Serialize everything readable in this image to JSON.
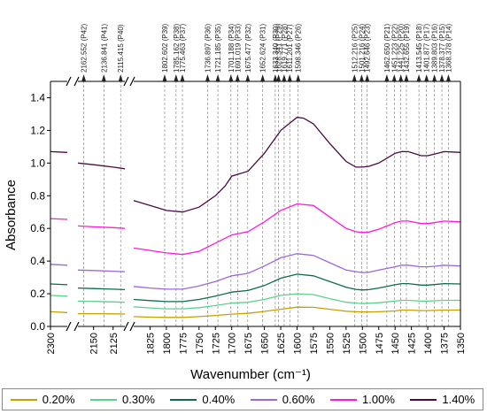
{
  "chart_data": {
    "type": "line",
    "title": "",
    "xlabel": "Wavenumber (cm⁻¹)",
    "ylabel": "Absorbance",
    "ylim": [
      0,
      1.5
    ],
    "y_ticks": [
      "0.0",
      "0.2",
      "0.4",
      "0.6",
      "0.8",
      "1.0",
      "1.2",
      "1.4"
    ],
    "y_tick_values": [
      0,
      0.2,
      0.4,
      0.6,
      0.8,
      1.0,
      1.2,
      1.4
    ],
    "x_direction": "reversed",
    "x_segments": [
      {
        "range": [
          2300,
          2290
        ],
        "ticks": [
          2300
        ]
      },
      {
        "range": [
          2170,
          2110
        ],
        "ticks": [
          2150,
          2125
        ]
      },
      {
        "range": [
          1850,
          1350
        ],
        "ticks": [
          1825,
          1800,
          1775,
          1750,
          1725,
          1700,
          1675,
          1650,
          1625,
          1600,
          1575,
          1550,
          1525,
          1500,
          1475,
          1450,
          1425,
          1400,
          1375,
          1350
        ]
      }
    ],
    "peak_annotations": [
      {
        "x": 2162.552,
        "label": "2162.552 (P42)"
      },
      {
        "x": 2136.841,
        "label": "2136.841 (P41)"
      },
      {
        "x": 2115.415,
        "label": "2115.415 (P40)"
      },
      {
        "x": 1802.602,
        "label": "1802.602 (P39)"
      },
      {
        "x": 1785.162,
        "label": "1785.162 (P38)"
      },
      {
        "x": 1775.463,
        "label": "1775.463 (P37)"
      },
      {
        "x": 1736.897,
        "label": "1736.897 (P36)"
      },
      {
        "x": 1721.185,
        "label": "1721.185 (P35)"
      },
      {
        "x": 1701.188,
        "label": "1701.188 (P34)"
      },
      {
        "x": 1691.019,
        "label": "1691.019 (P33)"
      },
      {
        "x": 1675.477,
        "label": "1675.477 (P32)"
      },
      {
        "x": 1652.624,
        "label": "1652.624 (P31)"
      },
      {
        "x": 1633.34,
        "label": "1633.340 (P30)"
      },
      {
        "x": 1628.341,
        "label": "1628.341 (P29)"
      },
      {
        "x": 1619.771,
        "label": "1619.771 (P28)"
      },
      {
        "x": 1611.201,
        "label": "1611.201 (P27)"
      },
      {
        "x": 1598.346,
        "label": "1598.346 (P26)"
      },
      {
        "x": 1512.216,
        "label": "1512.216 (P25)"
      },
      {
        "x": 1501.216,
        "label": "1501.216 (P24)"
      },
      {
        "x": 1492.646,
        "label": "1492.646 (P23)"
      },
      {
        "x": 1451.223,
        "label": "1451.223 (P22)"
      },
      {
        "x": 1462.65,
        "label": "1462.650 (P21)"
      },
      {
        "x": 1441.225,
        "label": "1441.225 (P20)"
      },
      {
        "x": 1432.655,
        "label": "1432.655 (P19)"
      },
      {
        "x": 1413.545,
        "label": "1413.545 (P18)"
      },
      {
        "x": 1401.877,
        "label": "1401.877 (P17)"
      },
      {
        "x": 1389.803,
        "label": "1389.803 (P16)"
      },
      {
        "x": 1378.377,
        "label": "1378.377 (P15)"
      },
      {
        "x": 1368.378,
        "label": "1368.378 (P14)"
      }
    ],
    "series": [
      {
        "name": "0.20%",
        "color": "#c8a000",
        "points": [
          [
            2300,
            0.09
          ],
          [
            2290,
            0.085
          ],
          [
            2170,
            0.078
          ],
          [
            2150,
            0.078
          ],
          [
            2125,
            0.077
          ],
          [
            2110,
            0.076
          ],
          [
            1850,
            0.06
          ],
          [
            1825,
            0.057
          ],
          [
            1800,
            0.055
          ],
          [
            1775,
            0.055
          ],
          [
            1750,
            0.06
          ],
          [
            1725,
            0.067
          ],
          [
            1700,
            0.075
          ],
          [
            1675,
            0.08
          ],
          [
            1650,
            0.092
          ],
          [
            1625,
            0.105
          ],
          [
            1600,
            0.118
          ],
          [
            1575,
            0.117
          ],
          [
            1550,
            0.105
          ],
          [
            1525,
            0.093
          ],
          [
            1510,
            0.09
          ],
          [
            1500,
            0.088
          ],
          [
            1490,
            0.088
          ],
          [
            1475,
            0.09
          ],
          [
            1450,
            0.095
          ],
          [
            1440,
            0.1
          ],
          [
            1430,
            0.1
          ],
          [
            1410,
            0.097
          ],
          [
            1400,
            0.097
          ],
          [
            1390,
            0.098
          ],
          [
            1375,
            0.1
          ],
          [
            1350,
            0.1
          ]
        ]
      },
      {
        "name": "0.30%",
        "color": "#5ad28c",
        "points": [
          [
            2300,
            0.19
          ],
          [
            2290,
            0.185
          ],
          [
            2170,
            0.155
          ],
          [
            2150,
            0.153
          ],
          [
            2125,
            0.15
          ],
          [
            2110,
            0.148
          ],
          [
            1850,
            0.12
          ],
          [
            1825,
            0.113
          ],
          [
            1800,
            0.108
          ],
          [
            1775,
            0.108
          ],
          [
            1750,
            0.115
          ],
          [
            1725,
            0.128
          ],
          [
            1700,
            0.143
          ],
          [
            1675,
            0.148
          ],
          [
            1650,
            0.165
          ],
          [
            1625,
            0.19
          ],
          [
            1600,
            0.2
          ],
          [
            1575,
            0.195
          ],
          [
            1550,
            0.17
          ],
          [
            1525,
            0.148
          ],
          [
            1510,
            0.143
          ],
          [
            1500,
            0.14
          ],
          [
            1490,
            0.142
          ],
          [
            1475,
            0.145
          ],
          [
            1450,
            0.155
          ],
          [
            1440,
            0.16
          ],
          [
            1430,
            0.16
          ],
          [
            1410,
            0.155
          ],
          [
            1400,
            0.155
          ],
          [
            1390,
            0.157
          ],
          [
            1375,
            0.16
          ],
          [
            1350,
            0.16
          ]
        ]
      },
      {
        "name": "0.40%",
        "color": "#0d6b47",
        "points": [
          [
            2300,
            0.26
          ],
          [
            2290,
            0.255
          ],
          [
            2170,
            0.235
          ],
          [
            2150,
            0.232
          ],
          [
            2125,
            0.228
          ],
          [
            2110,
            0.225
          ],
          [
            1850,
            0.165
          ],
          [
            1825,
            0.158
          ],
          [
            1800,
            0.152
          ],
          [
            1775,
            0.152
          ],
          [
            1750,
            0.165
          ],
          [
            1725,
            0.185
          ],
          [
            1700,
            0.21
          ],
          [
            1675,
            0.22
          ],
          [
            1650,
            0.25
          ],
          [
            1625,
            0.295
          ],
          [
            1600,
            0.32
          ],
          [
            1575,
            0.31
          ],
          [
            1550,
            0.275
          ],
          [
            1525,
            0.24
          ],
          [
            1510,
            0.227
          ],
          [
            1500,
            0.223
          ],
          [
            1490,
            0.225
          ],
          [
            1475,
            0.235
          ],
          [
            1450,
            0.255
          ],
          [
            1440,
            0.262
          ],
          [
            1430,
            0.262
          ],
          [
            1410,
            0.253
          ],
          [
            1400,
            0.253
          ],
          [
            1390,
            0.256
          ],
          [
            1375,
            0.262
          ],
          [
            1350,
            0.26
          ]
        ]
      },
      {
        "name": "0.60%",
        "color": "#9a66e0",
        "points": [
          [
            2300,
            0.38
          ],
          [
            2290,
            0.375
          ],
          [
            2170,
            0.345
          ],
          [
            2150,
            0.342
          ],
          [
            2125,
            0.338
          ],
          [
            2110,
            0.335
          ],
          [
            1850,
            0.245
          ],
          [
            1825,
            0.235
          ],
          [
            1800,
            0.228
          ],
          [
            1775,
            0.228
          ],
          [
            1750,
            0.248
          ],
          [
            1725,
            0.275
          ],
          [
            1700,
            0.31
          ],
          [
            1675,
            0.325
          ],
          [
            1650,
            0.37
          ],
          [
            1625,
            0.42
          ],
          [
            1600,
            0.445
          ],
          [
            1575,
            0.435
          ],
          [
            1550,
            0.39
          ],
          [
            1525,
            0.345
          ],
          [
            1510,
            0.335
          ],
          [
            1500,
            0.33
          ],
          [
            1490,
            0.332
          ],
          [
            1475,
            0.345
          ],
          [
            1450,
            0.365
          ],
          [
            1440,
            0.375
          ],
          [
            1430,
            0.375
          ],
          [
            1410,
            0.365
          ],
          [
            1400,
            0.365
          ],
          [
            1390,
            0.368
          ],
          [
            1375,
            0.375
          ],
          [
            1350,
            0.37
          ]
        ]
      },
      {
        "name": "1.00%",
        "color": "#ff1ad9",
        "points": [
          [
            2300,
            0.66
          ],
          [
            2290,
            0.655
          ],
          [
            2170,
            0.615
          ],
          [
            2150,
            0.61
          ],
          [
            2125,
            0.605
          ],
          [
            2110,
            0.6
          ],
          [
            1850,
            0.48
          ],
          [
            1825,
            0.465
          ],
          [
            1800,
            0.45
          ],
          [
            1775,
            0.44
          ],
          [
            1750,
            0.46
          ],
          [
            1725,
            0.51
          ],
          [
            1700,
            0.56
          ],
          [
            1675,
            0.58
          ],
          [
            1650,
            0.64
          ],
          [
            1625,
            0.71
          ],
          [
            1600,
            0.75
          ],
          [
            1575,
            0.74
          ],
          [
            1550,
            0.67
          ],
          [
            1525,
            0.6
          ],
          [
            1510,
            0.58
          ],
          [
            1500,
            0.575
          ],
          [
            1490,
            0.578
          ],
          [
            1475,
            0.595
          ],
          [
            1450,
            0.635
          ],
          [
            1440,
            0.645
          ],
          [
            1430,
            0.645
          ],
          [
            1410,
            0.63
          ],
          [
            1400,
            0.63
          ],
          [
            1390,
            0.635
          ],
          [
            1375,
            0.645
          ],
          [
            1350,
            0.64
          ]
        ]
      },
      {
        "name": "1.40%",
        "color": "#4a0a44",
        "points": [
          [
            2300,
            1.07
          ],
          [
            2290,
            1.065
          ],
          [
            2170,
            1.0
          ],
          [
            2150,
            0.99
          ],
          [
            2125,
            0.975
          ],
          [
            2110,
            0.965
          ],
          [
            1850,
            0.77
          ],
          [
            1825,
            0.74
          ],
          [
            1800,
            0.71
          ],
          [
            1775,
            0.7
          ],
          [
            1750,
            0.73
          ],
          [
            1725,
            0.8
          ],
          [
            1710,
            0.86
          ],
          [
            1700,
            0.92
          ],
          [
            1675,
            0.95
          ],
          [
            1650,
            1.06
          ],
          [
            1625,
            1.2
          ],
          [
            1600,
            1.28
          ],
          [
            1590,
            1.275
          ],
          [
            1575,
            1.24
          ],
          [
            1550,
            1.12
          ],
          [
            1525,
            1.01
          ],
          [
            1510,
            0.975
          ],
          [
            1500,
            0.975
          ],
          [
            1490,
            0.98
          ],
          [
            1475,
            1.0
          ],
          [
            1450,
            1.06
          ],
          [
            1440,
            1.07
          ],
          [
            1430,
            1.07
          ],
          [
            1410,
            1.045
          ],
          [
            1400,
            1.045
          ],
          [
            1390,
            1.055
          ],
          [
            1375,
            1.07
          ],
          [
            1350,
            1.065
          ]
        ]
      }
    ]
  }
}
